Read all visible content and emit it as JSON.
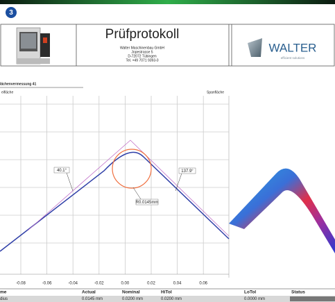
{
  "badge": "3",
  "header": {
    "title": "Prüfprotokoll",
    "address": [
      "Walter Maschinenbau GmbH",
      "Jopestrasse 5",
      "D-72072 Tübingen",
      "Tel. +49 7071 9393-0"
    ],
    "logo": "WALTER",
    "logo_tagline": "efficient solutions"
  },
  "report": {
    "section": "lächenvermessung 41",
    "left_label": "eifläche",
    "right_label": "Spanfläche"
  },
  "plot": {
    "x_ticks": [
      "-0.08",
      "-0.06",
      "-0.04",
      "-0.02",
      "0.00",
      "0.02",
      "0.04",
      "0.06"
    ],
    "annotations": [
      "40.1°",
      "137.9°",
      "R0.0145mm"
    ]
  },
  "table": {
    "headers": [
      "me",
      "Actual",
      "Nominal",
      "HiTol",
      "LoTol",
      "Status"
    ],
    "rows": [
      [
        "dius",
        "0.0145 mm",
        "0.0200 mm",
        "0.0200 mm",
        "0.0000 mm"
      ]
    ]
  }
}
